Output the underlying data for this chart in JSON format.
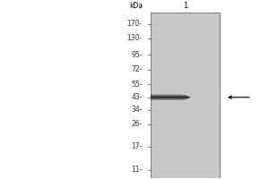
{
  "kda_label": "kDa",
  "lane_label": "1",
  "markers": [
    170,
    130,
    95,
    72,
    55,
    43,
    34,
    26,
    17,
    11
  ],
  "band_kda": 43,
  "band_color_dark": "#1a1a1a",
  "background_color": "#ffffff",
  "gel_bg_color": "#c8c8c8",
  "marker_fontsize": 5.5,
  "lane_label_fontsize": 6.0
}
